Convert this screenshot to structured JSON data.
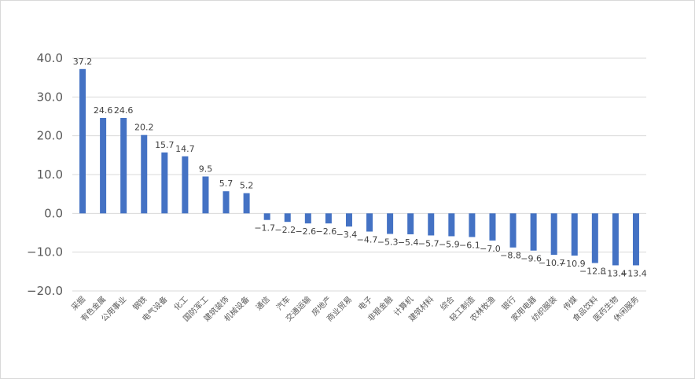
{
  "chart_data": {
    "type": "bar",
    "categories": [
      "采掘",
      "有色金属",
      "公用事业",
      "钢铁",
      "电气设备",
      "化工",
      "国防军工",
      "建筑装饰",
      "机械设备",
      "通信",
      "汽车",
      "交通运输",
      "房地产",
      "商业贸易",
      "电子",
      "非银金融",
      "计算机",
      "建筑材料",
      "综合",
      "轻工制造",
      "农林牧渔",
      "银行",
      "家用电器",
      "纺织服装",
      "传媒",
      "食品饮料",
      "医药生物",
      "休闲服务"
    ],
    "values": [
      37.2,
      24.6,
      24.6,
      20.2,
      15.7,
      14.7,
      9.5,
      5.7,
      5.2,
      -1.7,
      -2.2,
      -2.6,
      -2.6,
      -3.4,
      -4.7,
      -5.3,
      -5.4,
      -5.7,
      -5.9,
      -6.1,
      -7.0,
      -8.8,
      -9.6,
      -10.7,
      -10.9,
      -12.8,
      -13.4,
      -13.4
    ],
    "value_labels": [
      "37.2",
      "24.6",
      "24.6",
      "20.2",
      "15.7",
      "14.7",
      "9.5",
      "5.7",
      "5.2",
      "−1.7",
      "−2.2",
      "−2.6",
      "−2.6",
      "−3.4",
      "−4.7",
      "−5.3",
      "−5.4",
      "−5.7",
      "−5.9",
      "−6.1",
      "−7.0",
      "−8.8",
      "−9.6",
      "−10.7",
      "−10.9",
      "−12.8",
      "−13.4",
      "−13.4"
    ],
    "yticks": [
      "40.0",
      "30.0",
      "20.0",
      "10.0",
      "0.0",
      "−10.0",
      "−20.0"
    ],
    "ytick_values": [
      40,
      30,
      20,
      10,
      0,
      -10,
      -20
    ],
    "ylim": [
      -20,
      40
    ],
    "title": "",
    "xlabel": "",
    "ylabel": "",
    "grid": true,
    "legend": "none",
    "bar_color": "#4472c4",
    "grid_color": "#d9d9d9"
  }
}
